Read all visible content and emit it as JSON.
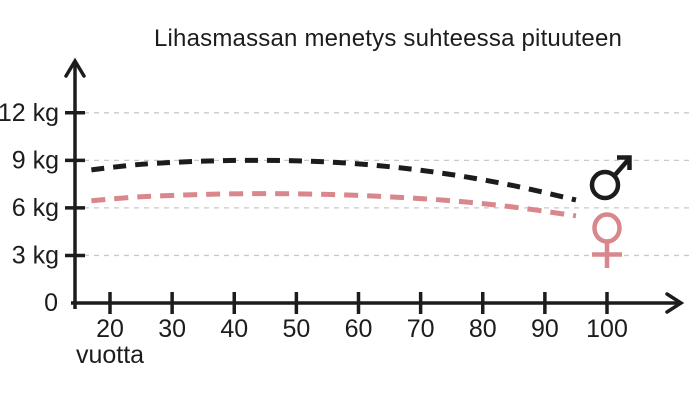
{
  "title": "Lihasmassan menetys suhteessa pituuteen",
  "y_axis": {
    "unit": "kg",
    "origin_label": "0",
    "ticks": [
      {
        "value": 3,
        "label": "3 kg"
      },
      {
        "value": 6,
        "label": "6 kg"
      },
      {
        "value": 9,
        "label": "9 kg"
      },
      {
        "value": 12,
        "label": "12 kg"
      }
    ]
  },
  "x_axis": {
    "label": "vuotta",
    "ticks": [
      {
        "value": 20,
        "label": "20"
      },
      {
        "value": 30,
        "label": "30"
      },
      {
        "value": 40,
        "label": "40"
      },
      {
        "value": 50,
        "label": "50"
      },
      {
        "value": 60,
        "label": "60"
      },
      {
        "value": 70,
        "label": "70"
      },
      {
        "value": 80,
        "label": "80"
      },
      {
        "value": 90,
        "label": "90"
      },
      {
        "value": 100,
        "label": "100"
      }
    ]
  },
  "legend": [
    {
      "series": "male",
      "symbol": "mars",
      "glyph": "♂",
      "color": "#1c1c1c"
    },
    {
      "series": "female",
      "symbol": "venus",
      "glyph": "♀",
      "color": "#d9878c"
    }
  ],
  "colors": {
    "background": "#ffffff",
    "axis": "#1c1c1c",
    "grid": "#c9c9c9",
    "male": "#1c1c1c",
    "female": "#d9878c"
  },
  "chart_data": {
    "type": "line",
    "title": "Lihasmassan menetys suhteessa pituuteen",
    "xlabel": "vuotta",
    "ylabel": "kg",
    "xlim": [
      10,
      112
    ],
    "ylim": [
      0,
      13.3
    ],
    "x_ticks": [
      20,
      30,
      40,
      50,
      60,
      70,
      80,
      90,
      100
    ],
    "y_ticks": [
      0,
      3,
      6,
      9,
      12
    ],
    "grid": "horizontal dashed gridlines at 3, 6, 9, 12 kg",
    "line_style": "dashed",
    "legend_position": "gender symbols at right ends of curves",
    "series": [
      {
        "name": "male",
        "symbol": "♂",
        "color": "#1c1c1c",
        "points": [
          [
            17,
            8.4
          ],
          [
            25,
            8.75
          ],
          [
            35,
            8.95
          ],
          [
            45,
            9.0
          ],
          [
            55,
            8.9
          ],
          [
            65,
            8.6
          ],
          [
            75,
            8.1
          ],
          [
            85,
            7.4
          ],
          [
            95,
            6.5
          ]
        ]
      },
      {
        "name": "female",
        "symbol": "♀",
        "color": "#d9878c",
        "points": [
          [
            17,
            6.45
          ],
          [
            25,
            6.7
          ],
          [
            35,
            6.85
          ],
          [
            45,
            6.9
          ],
          [
            55,
            6.85
          ],
          [
            65,
            6.7
          ],
          [
            75,
            6.45
          ],
          [
            85,
            6.05
          ],
          [
            95,
            5.5
          ]
        ]
      }
    ]
  }
}
